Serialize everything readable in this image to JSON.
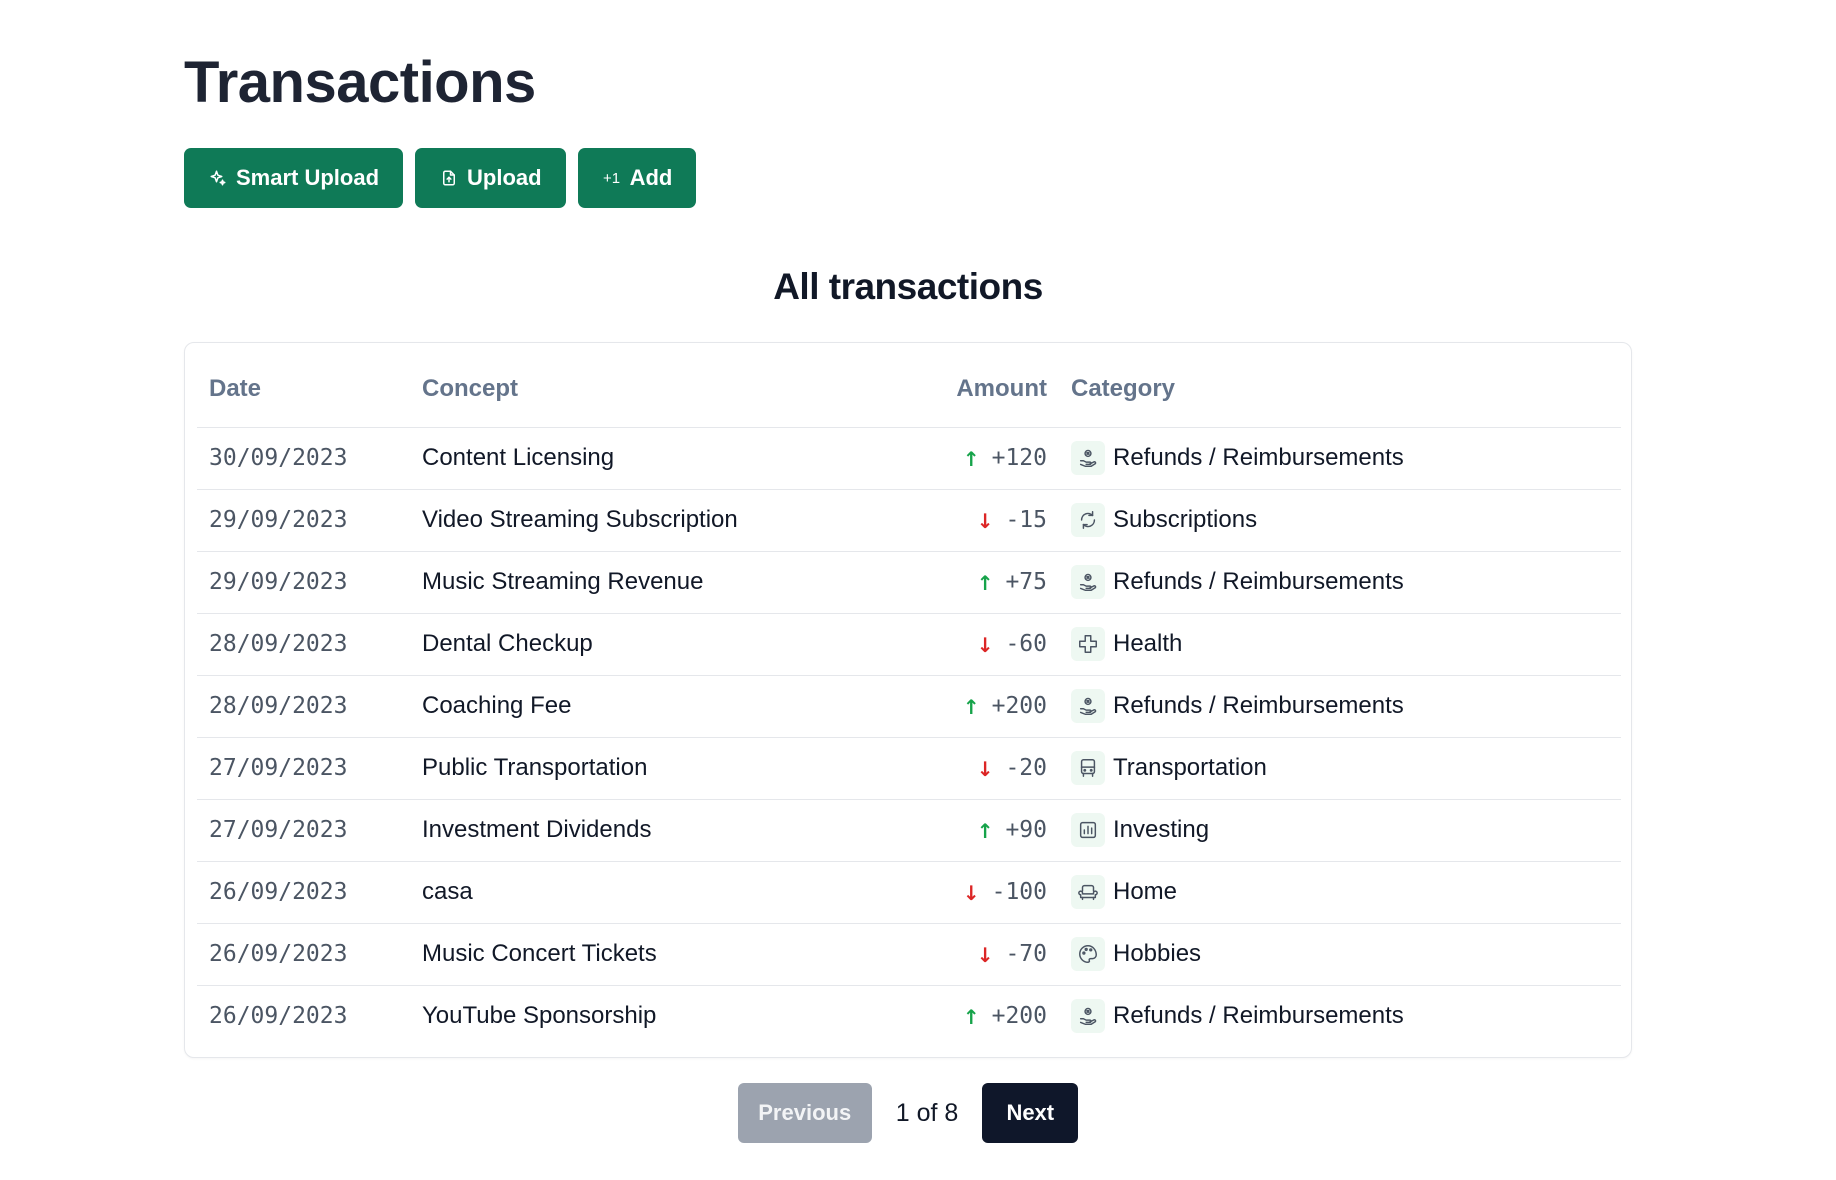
{
  "page": {
    "title": "Transactions"
  },
  "toolbar": {
    "smart_upload_label": "Smart Upload",
    "smart_upload_icon": "sparkles-icon",
    "upload_label": "Upload",
    "upload_icon": "file-upload-icon",
    "add_label": "Add",
    "add_icon_text": "+1"
  },
  "section": {
    "title": "All transactions"
  },
  "table": {
    "headers": {
      "date": "Date",
      "concept": "Concept",
      "amount": "Amount",
      "category": "Category"
    },
    "rows": [
      {
        "date": "30/09/2023",
        "concept": "Content Licensing",
        "direction": "up",
        "amount": "+120",
        "category": "Refunds / Reimbursements",
        "category_icon": "refund-hand-icon"
      },
      {
        "date": "29/09/2023",
        "concept": "Video Streaming Subscription",
        "direction": "down",
        "amount": "-15",
        "category": "Subscriptions",
        "category_icon": "refresh-cycle-icon"
      },
      {
        "date": "29/09/2023",
        "concept": "Music Streaming Revenue",
        "direction": "up",
        "amount": "+75",
        "category": "Refunds / Reimbursements",
        "category_icon": "refund-hand-icon"
      },
      {
        "date": "28/09/2023",
        "concept": "Dental Checkup",
        "direction": "down",
        "amount": "-60",
        "category": "Health",
        "category_icon": "medical-cross-icon"
      },
      {
        "date": "28/09/2023",
        "concept": "Coaching Fee",
        "direction": "up",
        "amount": "+200",
        "category": "Refunds / Reimbursements",
        "category_icon": "refund-hand-icon"
      },
      {
        "date": "27/09/2023",
        "concept": "Public Transportation",
        "direction": "down",
        "amount": "-20",
        "category": "Transportation",
        "category_icon": "bus-icon"
      },
      {
        "date": "27/09/2023",
        "concept": "Investment Dividends",
        "direction": "up",
        "amount": "+90",
        "category": "Investing",
        "category_icon": "bar-chart-icon"
      },
      {
        "date": "26/09/2023",
        "concept": "casa",
        "direction": "down",
        "amount": "-100",
        "category": "Home",
        "category_icon": "armchair-icon"
      },
      {
        "date": "26/09/2023",
        "concept": "Music Concert Tickets",
        "direction": "down",
        "amount": "-70",
        "category": "Hobbies",
        "category_icon": "palette-icon"
      },
      {
        "date": "26/09/2023",
        "concept": "YouTube Sponsorship",
        "direction": "up",
        "amount": "+200",
        "category": "Refunds / Reimbursements",
        "category_icon": "refund-hand-icon"
      }
    ]
  },
  "pagination": {
    "previous_label": "Previous",
    "next_label": "Next",
    "indicator": "1 of 8",
    "current_page": 1,
    "total_pages": 8
  },
  "colors": {
    "primary_button": "#0f7a57",
    "positive": "#16a34a",
    "negative": "#dc2626",
    "next_button": "#0f172a",
    "disabled_button": "#9ca3af"
  }
}
